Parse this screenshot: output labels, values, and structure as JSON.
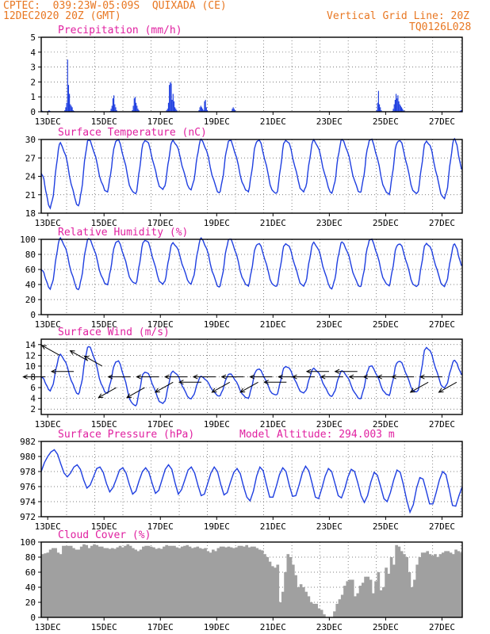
{
  "header": {
    "line1": "CPTEC:  039:23W-05:09S  QUIXADA (CE)",
    "line2": "12DEC2020 20Z (GMT)",
    "right1": "Vertical Grid Line: 20Z",
    "right2": "TQ0126L028"
  },
  "colors": {
    "header": "#e87722",
    "title": "#e020a0",
    "line": "#1f3fe0",
    "cloud": "#a0a0a0",
    "grid": "#555555"
  },
  "chart_data": [
    {
      "type": "bar",
      "id": "precip",
      "title": "Precipitation (mm/h)",
      "ylim": [
        0,
        5
      ],
      "yticks": [
        0,
        1,
        2,
        3,
        4,
        5
      ],
      "xticks": [
        "13DEC",
        "15DEC",
        "17DEC",
        "19DEC",
        "21DEC",
        "23DEC",
        "25DEC",
        "27DEC"
      ],
      "values": [
        0.1,
        0.05,
        0,
        0,
        0,
        0,
        0,
        0.05,
        0.1,
        0.05,
        0,
        0,
        0,
        0,
        0,
        0,
        0,
        0,
        0,
        0,
        0,
        0,
        0,
        0,
        0,
        0.1,
        0.3,
        0.6,
        3.5,
        1.8,
        1.2,
        0.5,
        0.4,
        0.3,
        0.1,
        0.05,
        0,
        0,
        0,
        0,
        0,
        0,
        0,
        0,
        0,
        0,
        0,
        0,
        0,
        0,
        0,
        0,
        0,
        0,
        0,
        0,
        0,
        0,
        0,
        0,
        0,
        0,
        0,
        0,
        0,
        0,
        0,
        0,
        0,
        0,
        0,
        0,
        0,
        0,
        0.05,
        0.2,
        0.4,
        0.9,
        1.1,
        0.5,
        0.3,
        0.1,
        0,
        0,
        0,
        0,
        0,
        0,
        0,
        0,
        0,
        0,
        0,
        0,
        0,
        0,
        0,
        0,
        0.1,
        0.4,
        0.9,
        1.0,
        0.6,
        0.4,
        0.2,
        0.1,
        0,
        0,
        0,
        0,
        0,
        0,
        0,
        0,
        0,
        0,
        0,
        0,
        0,
        0,
        0,
        0,
        0,
        0,
        0,
        0,
        0,
        0,
        0,
        0,
        0,
        0,
        0,
        0,
        0,
        0.1,
        0.2,
        0.6,
        1.8,
        2.0,
        1.9,
        0.8,
        1.2,
        0.7,
        0.3,
        0.2,
        0.1,
        0,
        0,
        0,
        0,
        0,
        0,
        0,
        0,
        0,
        0,
        0,
        0,
        0,
        0,
        0,
        0,
        0,
        0,
        0,
        0,
        0,
        0,
        0,
        0.1,
        0.3,
        0.4,
        0.3,
        0.2,
        0.1,
        0.7,
        0.8,
        0.3,
        0.1,
        0,
        0,
        0,
        0,
        0,
        0,
        0,
        0,
        0,
        0,
        0,
        0,
        0,
        0,
        0,
        0,
        0,
        0,
        0,
        0,
        0,
        0,
        0,
        0,
        0,
        0.05,
        0.2,
        0.3,
        0.2,
        0.1,
        0,
        0,
        0,
        0,
        0,
        0,
        0,
        0,
        0,
        0,
        0,
        0,
        0,
        0,
        0,
        0,
        0,
        0,
        0,
        0,
        0,
        0,
        0,
        0,
        0,
        0,
        0,
        0,
        0,
        0,
        0,
        0,
        0,
        0,
        0,
        0,
        0,
        0,
        0,
        0,
        0,
        0,
        0,
        0,
        0,
        0,
        0,
        0,
        0,
        0,
        0,
        0,
        0,
        0,
        0,
        0,
        0,
        0,
        0,
        0,
        0,
        0,
        0,
        0,
        0,
        0,
        0,
        0,
        0,
        0,
        0,
        0,
        0,
        0,
        0,
        0,
        0,
        0,
        0,
        0,
        0,
        0,
        0,
        0,
        0,
        0,
        0,
        0,
        0,
        0,
        0,
        0,
        0,
        0,
        0,
        0,
        0,
        0,
        0,
        0,
        0,
        0,
        0,
        0,
        0,
        0,
        0,
        0,
        0,
        0,
        0,
        0,
        0,
        0,
        0,
        0,
        0,
        0,
        0,
        0,
        0,
        0,
        0,
        0,
        0,
        0,
        0,
        0,
        0,
        0,
        0,
        0,
        0,
        0,
        0,
        0,
        0,
        0,
        0,
        0,
        0,
        0,
        0,
        0,
        0,
        0,
        0,
        0,
        0,
        0,
        0,
        0,
        0.1,
        0.6,
        1.4,
        0.5,
        0.3,
        0.1,
        0,
        0,
        0,
        0,
        0,
        0,
        0,
        0,
        0,
        0,
        0,
        0.05,
        0.2,
        0.5,
        0.8,
        1.2,
        0.9,
        1.1,
        0.7,
        0.5,
        0.4,
        0.3,
        0.2,
        0.1,
        0.05,
        0,
        0,
        0,
        0,
        0,
        0,
        0,
        0,
        0,
        0,
        0,
        0,
        0,
        0,
        0,
        0,
        0,
        0,
        0,
        0,
        0,
        0,
        0,
        0,
        0,
        0,
        0,
        0,
        0,
        0,
        0,
        0,
        0,
        0,
        0,
        0,
        0,
        0,
        0,
        0,
        0,
        0,
        0,
        0,
        0,
        0,
        0,
        0,
        0,
        0,
        0,
        0,
        0,
        0,
        0,
        0,
        0,
        0,
        0,
        0.05,
        0.1,
        0.1
      ]
    },
    {
      "type": "line",
      "id": "temperature",
      "title": "Surface Temperature (nC)",
      "ylim": [
        18,
        30
      ],
      "yticks": [
        18,
        21,
        24,
        27,
        30
      ],
      "xticks": [
        "13DEC",
        "15DEC",
        "17DEC",
        "19DEC",
        "21DEC",
        "23DEC",
        "25DEC",
        "27DEC"
      ],
      "daily": [
        {
          "min": 19.0,
          "max": 29.2
        },
        {
          "min": 19.5,
          "max": 29.8
        },
        {
          "min": 21.5,
          "max": 30.0
        },
        {
          "min": 21.0,
          "max": 30.0
        },
        {
          "min": 21.8,
          "max": 29.8
        },
        {
          "min": 22.0,
          "max": 29.8
        },
        {
          "min": 21.5,
          "max": 29.8
        },
        {
          "min": 21.5,
          "max": 30.0
        },
        {
          "min": 21.0,
          "max": 30.0
        },
        {
          "min": 21.5,
          "max": 29.8
        },
        {
          "min": 21.5,
          "max": 29.8
        },
        {
          "min": 21.5,
          "max": 30.0
        },
        {
          "min": 21.0,
          "max": 30.0
        },
        {
          "min": 21.0,
          "max": 29.8
        },
        {
          "min": 20.5,
          "max": 30.0
        }
      ]
    },
    {
      "type": "line",
      "id": "humidity",
      "title": "Relative Humidity (%)",
      "ylim": [
        0,
        100
      ],
      "yticks": [
        0,
        20,
        40,
        60,
        80,
        100
      ],
      "xticks": [
        "13DEC",
        "15DEC",
        "17DEC",
        "19DEC",
        "21DEC",
        "23DEC",
        "25DEC",
        "27DEC"
      ],
      "daily": [
        {
          "min": 35,
          "max": 100
        },
        {
          "min": 35,
          "max": 100
        },
        {
          "min": 40,
          "max": 98
        },
        {
          "min": 40,
          "max": 100
        },
        {
          "min": 40,
          "max": 95
        },
        {
          "min": 42,
          "max": 100
        },
        {
          "min": 38,
          "max": 100
        },
        {
          "min": 38,
          "max": 95
        },
        {
          "min": 36,
          "max": 95
        },
        {
          "min": 38,
          "max": 95
        },
        {
          "min": 36,
          "max": 95
        },
        {
          "min": 38,
          "max": 100
        },
        {
          "min": 38,
          "max": 95
        },
        {
          "min": 36,
          "max": 95
        },
        {
          "min": 38,
          "max": 93
        }
      ]
    },
    {
      "type": "line",
      "id": "wind",
      "title": "Surface Wind (m/s)",
      "ylim": [
        1,
        15
      ],
      "yticks": [
        2,
        4,
        6,
        8,
        10,
        12,
        14
      ],
      "xticks": [
        "13DEC",
        "15DEC",
        "17DEC",
        "19DEC",
        "21DEC",
        "23DEC",
        "25DEC",
        "27DEC"
      ],
      "daily": [
        {
          "min": 5.5,
          "max": 12.0
        },
        {
          "min": 5.0,
          "max": 13.5
        },
        {
          "min": 5.0,
          "max": 11.0
        },
        {
          "min": 2.5,
          "max": 9.0
        },
        {
          "min": 3.0,
          "max": 9.0
        },
        {
          "min": 4.0,
          "max": 8.0
        },
        {
          "min": 4.5,
          "max": 8.5
        },
        {
          "min": 4.0,
          "max": 9.5
        },
        {
          "min": 4.5,
          "max": 10.0
        },
        {
          "min": 5.0,
          "max": 9.5
        },
        {
          "min": 4.5,
          "max": 9.0
        },
        {
          "min": 4.0,
          "max": 10.0
        },
        {
          "min": 4.5,
          "max": 11.0
        },
        {
          "min": 5.0,
          "max": 13.5
        },
        {
          "min": 6.0,
          "max": 11.0
        }
      ],
      "arrows": [
        {
          "speed": 8,
          "dir": "E"
        },
        {
          "speed": 12,
          "dir": "SE"
        },
        {
          "speed": 9,
          "dir": "E"
        },
        {
          "speed": 11,
          "dir": "SE"
        },
        {
          "speed": 10,
          "dir": "SE"
        },
        {
          "speed": 6,
          "dir": "NE"
        },
        {
          "speed": 8,
          "dir": "E"
        },
        {
          "speed": 6,
          "dir": "NE"
        },
        {
          "speed": 8,
          "dir": "E"
        },
        {
          "speed": 7,
          "dir": "NE"
        },
        {
          "speed": 8,
          "dir": "E"
        },
        {
          "speed": 7,
          "dir": "E"
        },
        {
          "speed": 8,
          "dir": "E"
        },
        {
          "speed": 7,
          "dir": "NE"
        },
        {
          "speed": 8,
          "dir": "E"
        },
        {
          "speed": 7,
          "dir": "NE"
        },
        {
          "speed": 8,
          "dir": "E"
        },
        {
          "speed": 7,
          "dir": "E"
        },
        {
          "speed": 8,
          "dir": "E"
        },
        {
          "speed": 8,
          "dir": "E"
        },
        {
          "speed": 9,
          "dir": "E"
        },
        {
          "speed": 8,
          "dir": "E"
        },
        {
          "speed": 9,
          "dir": "E"
        },
        {
          "speed": 8,
          "dir": "E"
        },
        {
          "speed": 8,
          "dir": "E"
        },
        {
          "speed": 8,
          "dir": "E"
        },
        {
          "speed": 8,
          "dir": "E"
        },
        {
          "speed": 7,
          "dir": "NE"
        },
        {
          "speed": 8,
          "dir": "E"
        },
        {
          "speed": 7,
          "dir": "NE"
        }
      ]
    },
    {
      "type": "line",
      "id": "pressure",
      "title": "Surface Pressure (hPa)",
      "annotation": "Model Altitude: 294.003 m",
      "ylim": [
        972,
        982
      ],
      "yticks": [
        972,
        974,
        976,
        978,
        980,
        982
      ],
      "xticks": [
        "13DEC",
        "15DEC",
        "17DEC",
        "19DEC",
        "21DEC",
        "23DEC",
        "25DEC",
        "27DEC"
      ],
      "values": [
        978.0,
        979.2,
        980.0,
        980.6,
        980.9,
        980.3,
        979.0,
        977.8,
        977.3,
        977.8,
        978.6,
        978.9,
        978.3,
        976.9,
        975.8,
        976.2,
        977.3,
        978.4,
        978.6,
        977.9,
        976.4,
        975.3,
        975.9,
        977.0,
        978.2,
        978.5,
        977.8,
        976.3,
        975.0,
        975.4,
        976.8,
        978.0,
        978.5,
        977.9,
        976.4,
        975.1,
        975.5,
        976.9,
        978.3,
        978.9,
        978.3,
        976.5,
        975.0,
        975.6,
        976.9,
        978.2,
        978.6,
        977.8,
        976.2,
        974.8,
        975.0,
        976.4,
        977.8,
        978.6,
        978.0,
        976.3,
        974.9,
        975.2,
        976.6,
        977.9,
        978.4,
        977.7,
        976.0,
        974.6,
        974.1,
        975.4,
        977.4,
        978.6,
        978.1,
        976.3,
        974.6,
        974.6,
        976.0,
        977.6,
        978.5,
        978.0,
        976.2,
        974.7,
        974.8,
        976.2,
        977.8,
        978.7,
        978.1,
        976.4,
        974.6,
        974.4,
        975.8,
        977.4,
        978.4,
        978.0,
        976.4,
        974.8,
        974.5,
        975.7,
        977.3,
        978.3,
        978.0,
        976.5,
        974.8,
        973.9,
        974.8,
        976.6,
        977.9,
        977.5,
        976.0,
        974.4,
        974.0,
        975.2,
        976.9,
        978.2,
        977.9,
        976.2,
        974.2,
        972.6,
        973.6,
        975.8,
        977.2,
        977.0,
        975.4,
        973.7,
        973.7,
        975.2,
        976.9,
        978.0,
        977.6,
        975.7,
        973.5,
        973.4,
        974.8,
        976.0
      ]
    },
    {
      "type": "bar",
      "id": "cloud",
      "title": "Cloud Cover (%)",
      "ylim": [
        0,
        100
      ],
      "yticks": [
        0,
        20,
        40,
        60,
        80,
        100
      ],
      "xticks": [
        "13DEC",
        "15DEC",
        "17DEC",
        "19DEC",
        "21DEC",
        "23DEC",
        "25DEC",
        "27DEC"
      ],
      "values": [
        84,
        85,
        86,
        90,
        92,
        92,
        86,
        84,
        95,
        95,
        95,
        95,
        92,
        90,
        90,
        94,
        97,
        96,
        92,
        95,
        97,
        96,
        94,
        94,
        92,
        92,
        91,
        92,
        91,
        93,
        95,
        93,
        95,
        97,
        95,
        92,
        90,
        88,
        90,
        94,
        95,
        95,
        94,
        93,
        91,
        92,
        91,
        94,
        96,
        95,
        95,
        95,
        93,
        92,
        94,
        95,
        96,
        94,
        92,
        93,
        94,
        92,
        91,
        92,
        88,
        86,
        90,
        88,
        92,
        94,
        94,
        93,
        94,
        93,
        92,
        93,
        95,
        95,
        94,
        96,
        93,
        94,
        94,
        92,
        90,
        89,
        84,
        80,
        74,
        68,
        66,
        70,
        20,
        34,
        60,
        84,
        80,
        70,
        56,
        40,
        44,
        40,
        34,
        28,
        20,
        18,
        18,
        12,
        10,
        4,
        0,
        0,
        0,
        8,
        18,
        24,
        30,
        42,
        48,
        50,
        50,
        28,
        32,
        42,
        46,
        54,
        54,
        50,
        32,
        48,
        60,
        36,
        40,
        66,
        58,
        80,
        70,
        96,
        94,
        88,
        84,
        80,
        60,
        40,
        50,
        70,
        80,
        86,
        86,
        88,
        84,
        82,
        84,
        80,
        84,
        86,
        88,
        88,
        86,
        84,
        90,
        88,
        86
      ]
    }
  ]
}
